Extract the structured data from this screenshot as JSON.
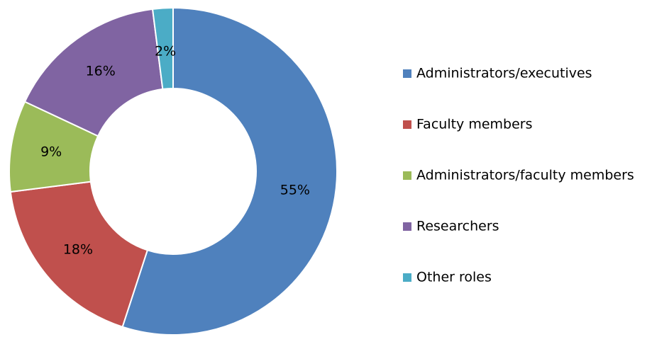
{
  "chart_data": {
    "type": "doughnut",
    "categories": [
      "Administrators/executives",
      "Faculty members",
      "Administrators/faculty members",
      "Researchers",
      "Other roles"
    ],
    "values": [
      55,
      18,
      9,
      16,
      2
    ],
    "value_labels": [
      "55%",
      "18%",
      "9%",
      "16%",
      "2%"
    ],
    "colors": [
      "#4f81bd",
      "#c0504d",
      "#9bbb59",
      "#8064a2",
      "#4bacc6"
    ],
    "legend": "right"
  }
}
